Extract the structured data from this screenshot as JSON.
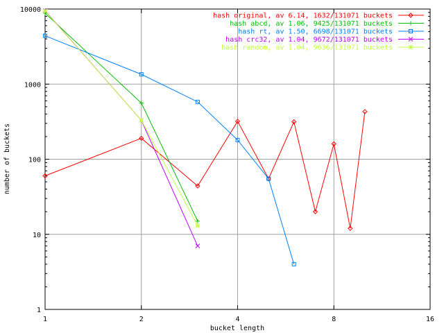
{
  "chart_data": {
    "type": "line",
    "title": "",
    "xlabel": "bucket length",
    "ylabel": "number of buckets",
    "xscale": "log2",
    "yscale": "log10",
    "xlim": [
      1,
      16
    ],
    "ylim": [
      1,
      10000
    ],
    "xticks": [
      1,
      2,
      4,
      8,
      16
    ],
    "yticks": [
      1,
      10,
      100,
      1000,
      10000
    ],
    "xtick_labels": [
      "1",
      "2",
      "4",
      "8",
      "16"
    ],
    "ytick_labels": [
      "1",
      "10",
      "100",
      "1000",
      "10000"
    ],
    "grid": true,
    "legend_position": "top-right",
    "series": [
      {
        "name": "hash original, av 6.14, 1632/131071 buckets",
        "color": "#ff0000",
        "marker": "diamond",
        "x": [
          1,
          2,
          3,
          4,
          5,
          6,
          7,
          8,
          9,
          10
        ],
        "y": [
          60,
          190,
          44,
          320,
          55,
          315,
          20,
          160,
          12,
          430
        ]
      },
      {
        "name": "hash abcd, av 1.06, 9425/131071 buckets",
        "color": "#00c000",
        "marker": "plus",
        "x": [
          1,
          2,
          3
        ],
        "y": [
          8800,
          560,
          15
        ]
      },
      {
        "name": "hash rt, av 1.50, 6698/131071 buckets",
        "color": "#0080ff",
        "marker": "square",
        "x": [
          1,
          2,
          3,
          4,
          5,
          6
        ],
        "y": [
          4400,
          1350,
          580,
          180,
          55,
          4
        ]
      },
      {
        "name": "hash crc32, av 1.04, 9672/131071 buckets",
        "color": "#c000ff",
        "marker": "x",
        "x": [
          1,
          2,
          3
        ],
        "y": [
          9500,
          330,
          7
        ]
      },
      {
        "name": "hash random, av 1.04, 9636/131071 buckets",
        "color": "#c0ff40",
        "marker": "star",
        "x": [
          1,
          2,
          3
        ],
        "y": [
          9400,
          330,
          13
        ]
      }
    ]
  }
}
